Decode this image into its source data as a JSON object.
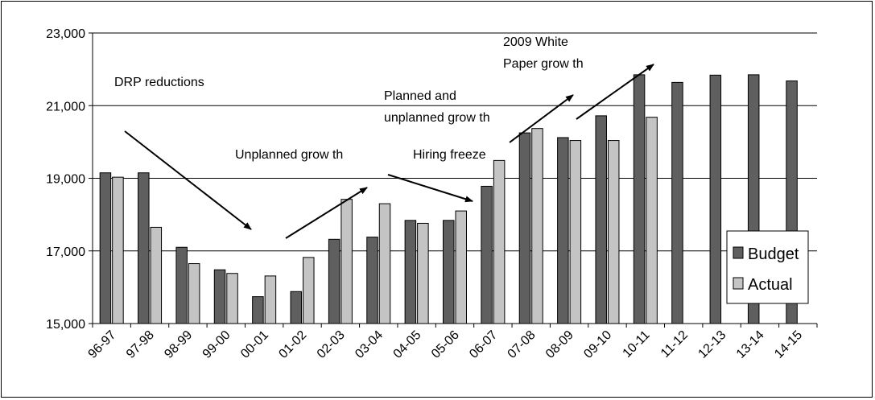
{
  "chart_data": {
    "type": "bar",
    "title": "",
    "xlabel": "",
    "ylabel": "",
    "ylim": [
      15000,
      23000
    ],
    "yticks": [
      15000,
      17000,
      19000,
      21000,
      23000
    ],
    "ytick_labels": [
      "15,000",
      "17,000",
      "19,000",
      "21,000",
      "23,000"
    ],
    "grid": "horizontal",
    "legend_position": "right",
    "categories": [
      "96-97",
      "97-98",
      "98-99",
      "99-00",
      "00-01",
      "01-02",
      "02-03",
      "03-04",
      "04-05",
      "05-06",
      "06-07",
      "07-08",
      "08-09",
      "09-10",
      "10-11",
      "11-12",
      "12-13",
      "13-14",
      "14-15"
    ],
    "series": [
      {
        "name": "Budget",
        "color": "#5f5f5f",
        "values": [
          19150,
          19150,
          17100,
          16480,
          15740,
          15880,
          17320,
          17380,
          17840,
          17840,
          18780,
          20250,
          20120,
          20720,
          21850,
          21640,
          21840,
          21850,
          21680
        ]
      },
      {
        "name": "Actual",
        "color": "#c4c4c4",
        "values": [
          19030,
          17650,
          16650,
          16380,
          16310,
          16820,
          18420,
          18300,
          17760,
          18100,
          19490,
          20370,
          20040,
          20040,
          20680,
          null,
          null,
          null,
          null
        ]
      }
    ],
    "annotations": [
      {
        "text": "DRP reductions"
      },
      {
        "text": "Unplanned grow th"
      },
      {
        "text": "Planned and"
      },
      {
        "text": "unplanned grow th"
      },
      {
        "text": "Hiring freeze"
      },
      {
        "text": "2009 White"
      },
      {
        "text": "Paper grow th"
      }
    ],
    "arrows": [
      {
        "name": "drp-reductions-arrow"
      },
      {
        "name": "unplanned-growth-arrow"
      },
      {
        "name": "hiring-freeze-arrow"
      },
      {
        "name": "planned-growth-arrow"
      },
      {
        "name": "white-paper-growth-arrow"
      }
    ]
  }
}
